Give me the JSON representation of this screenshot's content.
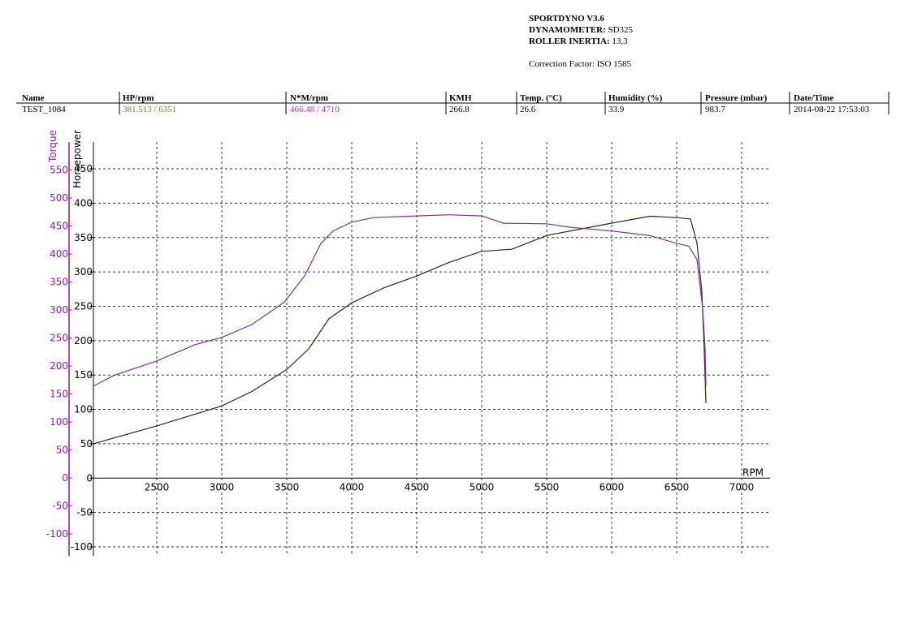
{
  "header": {
    "software": "SPORTDYNO V3.6",
    "dynamometer_label": "DYNAMOMETER:",
    "dynamometer": "SD325",
    "inertia_label": "ROLLER INERTIA:",
    "inertia": "13,3",
    "correction_label": "Correction Factor:",
    "correction": "ISO 1585"
  },
  "table": {
    "columns": [
      "Name",
      "HP/rpm",
      "N*M/rpm",
      "KMH",
      "Temp. (°C)",
      "Humidity (%)",
      "Pressure (mbar)",
      "Date/Time"
    ],
    "rows": [
      [
        "TEST_1084",
        "381.513 / 6351",
        "466.48 / 4710",
        "266.8",
        "26.6",
        "33.9",
        "983.7",
        "2014-08-22 17:53:03"
      ]
    ]
  },
  "chart_data": {
    "type": "line",
    "x_label": "RPM",
    "y_label": "Horsepower",
    "y2_label": "Torque",
    "xlim": [
      2000,
      7200
    ],
    "xticks": [
      2500,
      3000,
      3500,
      4000,
      4500,
      5000,
      5500,
      6000,
      6500,
      7000
    ],
    "ylim": [
      -113,
      489
    ],
    "yticks": [
      -100,
      -50,
      0,
      50,
      100,
      150,
      200,
      250,
      300,
      350,
      400,
      450
    ],
    "y2lim": [
      -139,
      600
    ],
    "y2ticks": [
      -100,
      -50,
      0,
      50,
      100,
      150,
      200,
      250,
      300,
      350,
      400,
      450,
      500,
      550
    ],
    "grid": true,
    "y2_color": "#8a1e9e",
    "series": [
      {
        "name": "Horsepower",
        "color": "#2a2a12",
        "x": [
          2012,
          2500,
          3000,
          3231,
          3500,
          3669,
          3825,
          4000,
          4250,
          4500,
          4750,
          5000,
          5231,
          5500,
          5750,
          6000,
          6294,
          6500,
          6606,
          6656,
          6694,
          6712,
          6725
        ],
        "values": [
          50,
          76,
          105,
          126,
          158,
          188,
          232,
          255,
          277,
          294,
          314,
          330,
          333,
          353,
          362,
          371,
          381,
          379,
          377,
          342,
          271,
          188,
          109
        ]
      },
      {
        "name": "Torque",
        "color": "#7b2fa0",
        "axis": "y2",
        "x": [
          2012,
          2169,
          2500,
          2794,
          3000,
          3231,
          3481,
          3638,
          3763,
          3856,
          4000,
          4169,
          4500,
          4750,
          5000,
          5169,
          5500,
          5669,
          6000,
          6294,
          6500,
          6594,
          6656,
          6700,
          6719,
          6725
        ],
        "values": [
          164,
          183,
          209,
          238,
          251,
          274,
          314,
          361,
          419,
          441,
          457,
          465,
          468,
          470,
          468,
          455,
          454,
          448,
          441,
          433,
          419,
          414,
          390,
          303,
          230,
          165
        ]
      }
    ]
  }
}
